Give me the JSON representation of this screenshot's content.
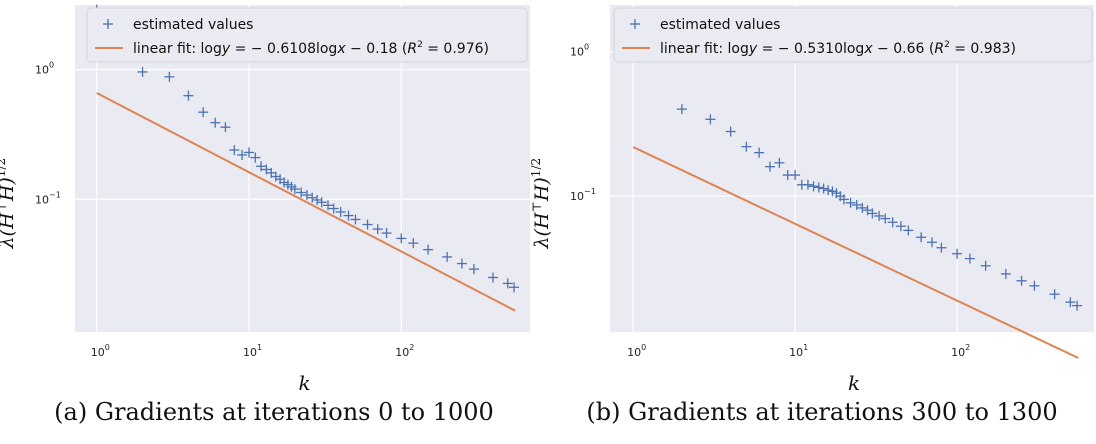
{
  "chart_data": [
    {
      "type": "scatter",
      "caption": "(a) Gradients at iterations 0 to 1000",
      "xlabel": "k",
      "ylabel": "λ(H⊤H)1/2",
      "xscale": "log",
      "yscale": "log",
      "xlim": [
        0.72,
        700
      ],
      "ylim": [
        0.0095,
        3.15
      ],
      "xticks": [
        {
          "value": 1,
          "label": "10^0"
        },
        {
          "value": 10,
          "label": "10^1"
        },
        {
          "value": 100,
          "label": "10^2"
        }
      ],
      "yticks": [
        {
          "value": 1,
          "label": "10^0"
        },
        {
          "value": 0.1,
          "label": "10^-1"
        }
      ],
      "grid": true,
      "legend_position": "top-right",
      "series": [
        {
          "name": "estimated values",
          "marker": "+",
          "color": "#4c72b0",
          "x": [
            1,
            2,
            3,
            4,
            5,
            6,
            7,
            8,
            9,
            10,
            11,
            12,
            13,
            14,
            15,
            16,
            17,
            18,
            19,
            20,
            22,
            24,
            26,
            28,
            30,
            33,
            36,
            40,
            45,
            50,
            60,
            70,
            80,
            100,
            120,
            150,
            200,
            250,
            300,
            400,
            500,
            550
          ],
          "y": [
            2.9,
            0.96,
            0.88,
            0.63,
            0.47,
            0.39,
            0.36,
            0.24,
            0.22,
            0.23,
            0.21,
            0.18,
            0.17,
            0.16,
            0.15,
            0.143,
            0.135,
            0.13,
            0.125,
            0.12,
            0.113,
            0.108,
            0.103,
            0.099,
            0.095,
            0.09,
            0.085,
            0.08,
            0.075,
            0.07,
            0.064,
            0.059,
            0.055,
            0.05,
            0.046,
            0.041,
            0.036,
            0.032,
            0.029,
            0.025,
            0.0225,
            0.021
          ]
        },
        {
          "name": "linear fit: logy = −0.6108logx − 0.18 (R² = 0.976)",
          "type": "line",
          "color": "#dd8452",
          "slope": -0.6108,
          "intercept": -0.18,
          "x_range": [
            1,
            560
          ]
        }
      ]
    },
    {
      "type": "scatter",
      "caption": "(b) Gradients at iterations 300 to 1300",
      "xlabel": "k",
      "ylabel": "λ(H⊤H)1/2",
      "xscale": "log",
      "yscale": "log",
      "xlim": [
        0.72,
        700
      ],
      "ylim": [
        0.0115,
        2.1
      ],
      "xticks": [
        {
          "value": 1,
          "label": "10^0"
        },
        {
          "value": 10,
          "label": "10^1"
        },
        {
          "value": 100,
          "label": "10^2"
        }
      ],
      "yticks": [
        {
          "value": 1,
          "label": "10^0"
        },
        {
          "value": 0.1,
          "label": "10^-1"
        }
      ],
      "grid": true,
      "legend_position": "top-right",
      "series": [
        {
          "name": "estimated values",
          "marker": "+",
          "color": "#4c72b0",
          "x": [
            1,
            2,
            3,
            4,
            5,
            6,
            7,
            8,
            9,
            10,
            11,
            12,
            13,
            14,
            15,
            16,
            17,
            18,
            19,
            20,
            22,
            24,
            26,
            28,
            30,
            33,
            36,
            40,
            45,
            50,
            60,
            70,
            80,
            100,
            120,
            150,
            200,
            250,
            300,
            400,
            500,
            550
          ],
          "y": [
            1.65,
            0.4,
            0.34,
            0.28,
            0.22,
            0.2,
            0.16,
            0.17,
            0.14,
            0.14,
            0.12,
            0.12,
            0.117,
            0.115,
            0.113,
            0.11,
            0.108,
            0.105,
            0.1,
            0.095,
            0.09,
            0.087,
            0.083,
            0.08,
            0.076,
            0.073,
            0.07,
            0.066,
            0.062,
            0.058,
            0.052,
            0.048,
            0.044,
            0.04,
            0.037,
            0.033,
            0.029,
            0.026,
            0.024,
            0.021,
            0.0185,
            0.0175
          ]
        },
        {
          "name": "linear fit: logy = −0.5310logx − 0.66 (R² = 0.983)",
          "type": "line",
          "color": "#dd8452",
          "slope": -0.531,
          "intercept": -0.66,
          "x_range": [
            1,
            560
          ]
        }
      ]
    }
  ],
  "legend": {
    "estimated_values": "estimated values",
    "fit_a_prefix": "linear fit: log",
    "fit_a_eq": " = − 0.6108log",
    "fit_a_suffix": " − 0.18 (",
    "fit_a_r2": " = 0.976)",
    "fit_b_prefix": "linear fit: log",
    "fit_b_eq": " = − 0.5310log",
    "fit_b_suffix": " − 0.66 (",
    "fit_b_r2": " = 0.983)",
    "var_y": "y",
    "var_x": "x",
    "r": "R",
    "r_exp": "2"
  },
  "axis_text": {
    "xlabel": "k",
    "ylabel_main": "λ(H",
    "ylabel_sup_t": "⊤",
    "ylabel_mid": "H)",
    "ylabel_sup_half": "1/2",
    "tick_base": "10",
    "exp_0": "0",
    "exp_1": "1",
    "exp_2": "2",
    "exp_m1": "−1"
  },
  "captions": {
    "a": "(a) Gradients at iterations 0 to 1000",
    "b": "(b) Gradients at iterations 300 to 1300"
  }
}
